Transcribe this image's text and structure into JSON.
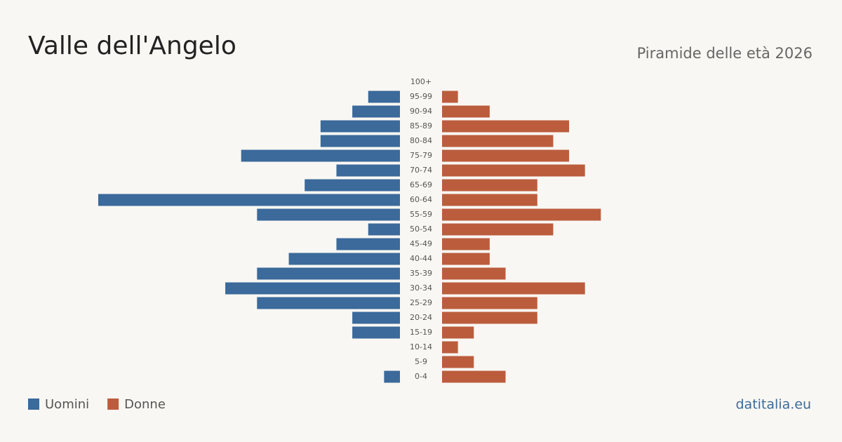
{
  "chart_data": {
    "type": "pyramid",
    "title": "Valle dell'Angelo",
    "subtitle": "Piramide delle età 2026",
    "categories": [
      "100+",
      "95-99",
      "90-94",
      "85-89",
      "80-84",
      "75-79",
      "70-74",
      "65-69",
      "60-64",
      "55-59",
      "50-54",
      "45-49",
      "40-44",
      "35-39",
      "30-34",
      "25-29",
      "20-24",
      "15-19",
      "10-14",
      "5-9",
      "0-4"
    ],
    "series": [
      {
        "name": "Uomini",
        "color": "#3b6a9b",
        "values": [
          0,
          2,
          3,
          5,
          5,
          10,
          4,
          6,
          19,
          9,
          2,
          4,
          7,
          9,
          11,
          9,
          3,
          3,
          0,
          0,
          1
        ]
      },
      {
        "name": "Donne",
        "color": "#bb5d3d",
        "values": [
          0,
          1,
          3,
          8,
          7,
          8,
          9,
          6,
          6,
          10,
          7,
          3,
          3,
          4,
          9,
          6,
          6,
          2,
          1,
          2,
          4
        ]
      }
    ],
    "source": "datitalia.eu"
  }
}
